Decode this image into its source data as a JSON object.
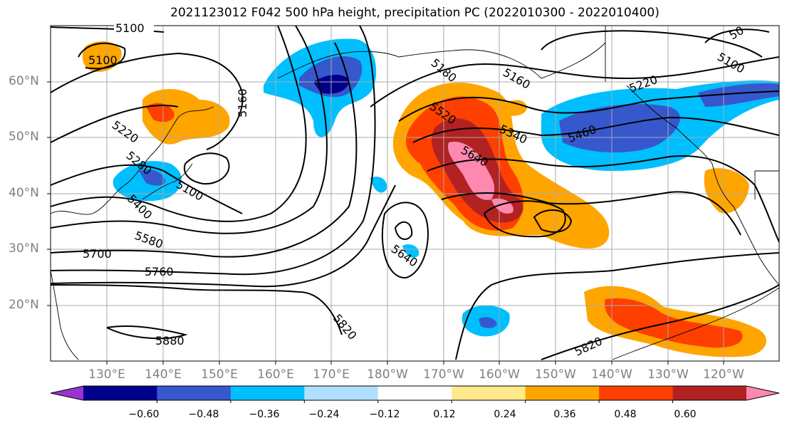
{
  "title": "2021123012 F042 500 hPa height, precipitation PC (2022010300 - 2022010400)",
  "lat_labels": [
    "60°N",
    "50°N",
    "40°N",
    "30°N",
    "20°N"
  ],
  "lon_labels": [
    "130°E",
    "140°E",
    "150°E",
    "160°E",
    "170°E",
    "180°W",
    "170°W",
    "160°W",
    "150°W",
    "140°W",
    "130°W",
    "120°W"
  ],
  "contour_labels": {
    "c5100_a": "5100",
    "c5100_b": "5100",
    "c5100_c": "5100",
    "c5100_d": "5100",
    "c5160_a": "5160",
    "c5160_b": "5160",
    "c5220_a": "5220",
    "c5220_b": "5220",
    "c5280": "5280",
    "c5180": "5180",
    "c5340": "5340",
    "c5400": "5400",
    "c5460": "5460",
    "c5520": "5520",
    "c5580": "5580",
    "c5640_a": "5640",
    "c5640_b": "5640",
    "c5700": "5700",
    "c5760": "5760",
    "c5820_a": "5820",
    "c5820_b": "5820",
    "c5880": "5880",
    "c50x": "50"
  },
  "colorbar": {
    "colors": [
      "#9a32cd",
      "#00008b",
      "#3658cc",
      "#00bfff",
      "#b0e0ff",
      "#ffffff",
      "#ffe98a",
      "#ffa500",
      "#ff3f00",
      "#b22222",
      "#ff88b0"
    ],
    "tick_labels": [
      "−0.60",
      "−0.48",
      "−0.36",
      "−0.24",
      "−0.12",
      "0.12",
      "0.24",
      "0.36",
      "0.48",
      "0.60"
    ]
  }
}
